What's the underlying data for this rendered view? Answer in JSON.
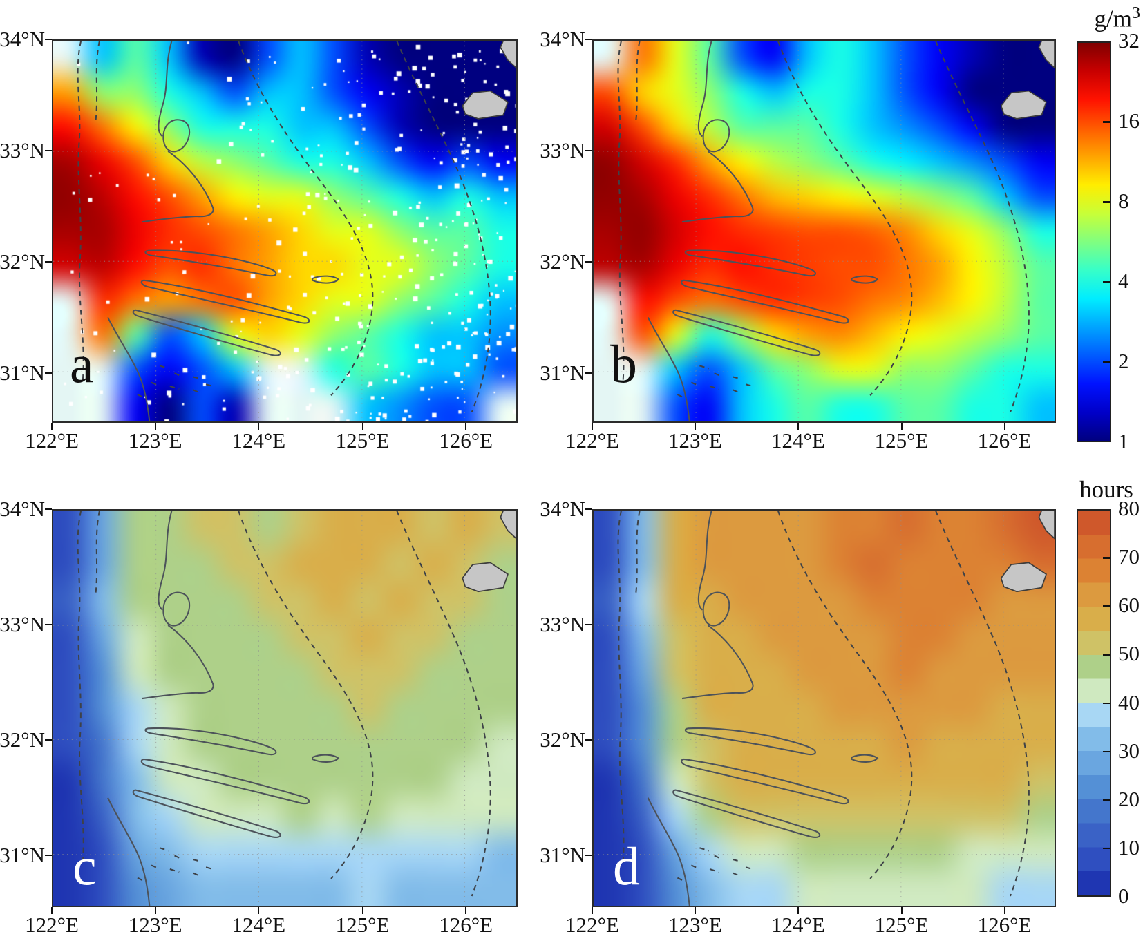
{
  "panels": [
    {
      "letter": "a"
    },
    {
      "letter": "b"
    },
    {
      "letter": "c"
    },
    {
      "letter": "d"
    }
  ],
  "axes": {
    "lat_labels": [
      "34°N",
      "33°N",
      "32°N",
      "31°N"
    ],
    "lon_labels": [
      "122°E",
      "123°E",
      "124°E",
      "125°E",
      "126°E"
    ]
  },
  "colorbars": {
    "concentration": {
      "title_main": "g/m",
      "title_sup": "3",
      "tick_labels": [
        "32",
        "16",
        "8",
        "4",
        "2",
        "1"
      ]
    },
    "hours": {
      "title": "hours",
      "tick_labels": [
        "80",
        "70",
        "60",
        "50",
        "40",
        "30",
        "20",
        "10",
        "0"
      ]
    }
  },
  "chart_data": {
    "type": "heatmap",
    "geo_extent": {
      "lon_min": 122,
      "lon_max": 126.5,
      "lat_min": 30.55,
      "lat_max": 34
    },
    "no_data_color": "#e4f6f4",
    "land_color": "#c6c6c6",
    "colorbars": [
      {
        "title": "g/m3",
        "ticks": [
          32,
          16,
          8,
          4,
          2,
          1
        ],
        "scale": "log2",
        "range": [
          1,
          32
        ],
        "colormap": "jet",
        "position": "right-top"
      },
      {
        "title": "hours",
        "ticks": [
          80,
          70,
          60,
          50,
          40,
          30,
          20,
          10,
          0
        ],
        "scale": "linear",
        "range": [
          0,
          80
        ],
        "colormap": "banded",
        "band_step": 5,
        "position": "right-bottom",
        "band_colors_bottom_to_top": [
          "#1f36b2",
          "#2f4fc0",
          "#3a62c6",
          "#4476cc",
          "#5490d6",
          "#6aa6e0",
          "#82bce9",
          "#a8d7f4",
          "#cfe9c0",
          "#aed089",
          "#cfc266",
          "#d9ae4a",
          "#dc9a3f",
          "#dc8233",
          "#d76e2f",
          "#cf582b"
        ]
      }
    ],
    "panels": [
      {
        "label": "a",
        "units": "g/m3",
        "scale": "log2",
        "value_range": [
          1,
          32
        ],
        "cols": 14,
        "rows": 11,
        "values": [
          [
            null,
            3,
            5,
            3,
            1.2,
            1,
            2,
            3,
            2,
            1.2,
            1,
            1,
            1,
            1
          ],
          [
            12,
            6,
            6,
            4,
            3,
            2,
            3,
            3,
            2,
            1.5,
            1.2,
            1,
            1,
            1
          ],
          [
            20,
            14,
            9,
            6,
            4,
            4,
            4,
            3,
            3,
            2,
            1.2,
            1,
            1,
            1
          ],
          [
            28,
            22,
            16,
            10,
            7,
            6,
            5,
            4,
            4,
            3,
            2,
            1.5,
            2,
            1.5
          ],
          [
            30,
            26,
            20,
            16,
            12,
            9,
            8,
            8,
            6,
            5,
            4,
            3,
            4,
            3
          ],
          [
            28,
            28,
            22,
            18,
            16,
            14,
            12,
            10,
            8,
            8,
            6,
            5,
            5,
            4
          ],
          [
            24,
            26,
            20,
            16,
            18,
            14,
            12,
            10,
            10,
            8,
            8,
            6,
            5,
            4
          ],
          [
            null,
            18,
            14,
            12,
            14,
            16,
            12,
            10,
            8,
            8,
            6,
            5,
            4,
            3
          ],
          [
            null,
            14,
            5,
            2,
            3,
            8,
            10,
            8,
            6,
            5,
            4,
            3,
            3,
            2.5
          ],
          [
            null,
            null,
            2,
            1.5,
            2,
            3,
            null,
            null,
            4,
            5,
            4,
            3,
            3,
            2
          ],
          [
            null,
            null,
            1.5,
            1,
            2,
            1.2,
            null,
            null,
            null,
            3,
            2.5,
            2,
            2,
            null
          ]
        ]
      },
      {
        "label": "b",
        "units": "g/m3",
        "scale": "log2",
        "value_range": [
          1,
          32
        ],
        "cols": 14,
        "rows": 11,
        "values": [
          [
            null,
            14,
            8,
            5,
            2,
            1.5,
            3,
            4,
            3,
            2,
            1.5,
            1.2,
            1,
            1
          ],
          [
            16,
            10,
            8,
            6,
            4,
            3,
            4,
            4,
            3,
            2,
            1.5,
            1,
            1,
            1
          ],
          [
            24,
            16,
            10,
            7,
            5,
            5,
            5,
            4,
            3,
            2.5,
            2,
            1.5,
            1,
            1
          ],
          [
            30,
            24,
            18,
            12,
            9,
            7,
            6,
            5,
            4,
            3.5,
            3,
            2.5,
            2,
            1.5
          ],
          [
            30,
            28,
            22,
            18,
            14,
            11,
            10,
            9,
            8,
            7,
            6,
            5,
            3,
            2
          ],
          [
            28,
            30,
            24,
            20,
            18,
            17,
            16,
            16,
            15,
            13,
            10,
            8,
            6,
            4
          ],
          [
            26,
            28,
            22,
            18,
            20,
            18,
            17,
            16,
            16,
            14,
            12,
            9,
            7,
            5
          ],
          [
            null,
            20,
            16,
            14,
            16,
            18,
            17,
            16,
            14,
            13,
            11,
            9,
            7,
            5
          ],
          [
            null,
            16,
            8,
            4,
            6,
            10,
            12,
            13,
            11,
            9,
            8,
            7,
            6,
            5
          ],
          [
            null,
            null,
            3,
            2,
            3,
            5,
            6,
            8,
            8,
            6,
            6,
            5,
            4,
            4
          ],
          [
            null,
            null,
            2,
            1.5,
            3,
            4,
            5,
            4,
            4,
            5,
            5,
            4,
            4,
            3
          ]
        ]
      },
      {
        "label": "c",
        "units": "hours",
        "scale": "linear",
        "value_range": [
          0,
          80
        ],
        "cols": 14,
        "rows": 11,
        "values": [
          [
            5,
            25,
            45,
            47,
            50,
            52,
            48,
            52,
            55,
            57,
            55,
            52,
            55,
            50
          ],
          [
            8,
            28,
            46,
            48,
            48,
            50,
            52,
            55,
            57,
            55,
            52,
            55,
            52,
            48
          ],
          [
            10,
            30,
            45,
            46,
            47,
            48,
            50,
            52,
            55,
            52,
            55,
            52,
            50,
            47
          ],
          [
            8,
            26,
            44,
            46,
            46,
            47,
            48,
            50,
            52,
            55,
            52,
            50,
            48,
            46
          ],
          [
            6,
            22,
            40,
            45,
            46,
            46,
            47,
            48,
            50,
            52,
            50,
            48,
            47,
            46
          ],
          [
            5,
            20,
            38,
            44,
            46,
            45,
            46,
            47,
            48,
            50,
            48,
            47,
            46,
            45
          ],
          [
            5,
            18,
            36,
            44,
            45,
            46,
            45,
            46,
            47,
            48,
            47,
            46,
            45,
            44
          ],
          [
            4,
            15,
            34,
            42,
            44,
            45,
            46,
            45,
            46,
            47,
            46,
            45,
            44,
            43
          ],
          [
            3,
            10,
            30,
            38,
            42,
            44,
            44,
            45,
            44,
            45,
            44,
            43,
            42,
            40
          ],
          [
            2,
            8,
            25,
            32,
            35,
            36,
            38,
            38,
            37,
            38,
            38,
            36,
            35,
            34
          ],
          [
            2,
            5,
            20,
            28,
            30,
            32,
            33,
            34,
            34,
            35,
            34,
            33,
            32,
            30
          ]
        ]
      },
      {
        "label": "d",
        "units": "hours",
        "scale": "linear",
        "value_range": [
          0,
          80
        ],
        "cols": 14,
        "rows": 11,
        "values": [
          [
            5,
            30,
            55,
            60,
            62,
            63,
            62,
            65,
            68,
            70,
            68,
            65,
            70,
            75
          ],
          [
            8,
            32,
            56,
            60,
            60,
            62,
            63,
            66,
            70,
            68,
            65,
            68,
            66,
            72
          ],
          [
            10,
            35,
            55,
            58,
            60,
            60,
            62,
            64,
            66,
            65,
            68,
            65,
            64,
            62
          ],
          [
            8,
            30,
            54,
            58,
            58,
            60,
            60,
            62,
            64,
            68,
            65,
            63,
            62,
            60
          ],
          [
            6,
            26,
            50,
            56,
            58,
            58,
            60,
            60,
            62,
            65,
            63,
            62,
            60,
            60
          ],
          [
            5,
            22,
            48,
            55,
            58,
            57,
            58,
            60,
            60,
            62,
            60,
            60,
            58,
            58
          ],
          [
            5,
            20,
            45,
            54,
            56,
            58,
            57,
            58,
            59,
            60,
            59,
            58,
            57,
            56
          ],
          [
            4,
            16,
            42,
            52,
            55,
            56,
            57,
            56,
            57,
            58,
            57,
            56,
            55,
            54
          ],
          [
            3,
            12,
            35,
            45,
            50,
            52,
            54,
            54,
            53,
            54,
            53,
            52,
            50,
            48
          ],
          [
            2,
            8,
            28,
            38,
            42,
            44,
            46,
            46,
            45,
            46,
            46,
            44,
            43,
            42
          ],
          [
            2,
            5,
            22,
            32,
            36,
            38,
            40,
            42,
            42,
            44,
            42,
            40,
            38,
            36
          ]
        ]
      }
    ]
  }
}
